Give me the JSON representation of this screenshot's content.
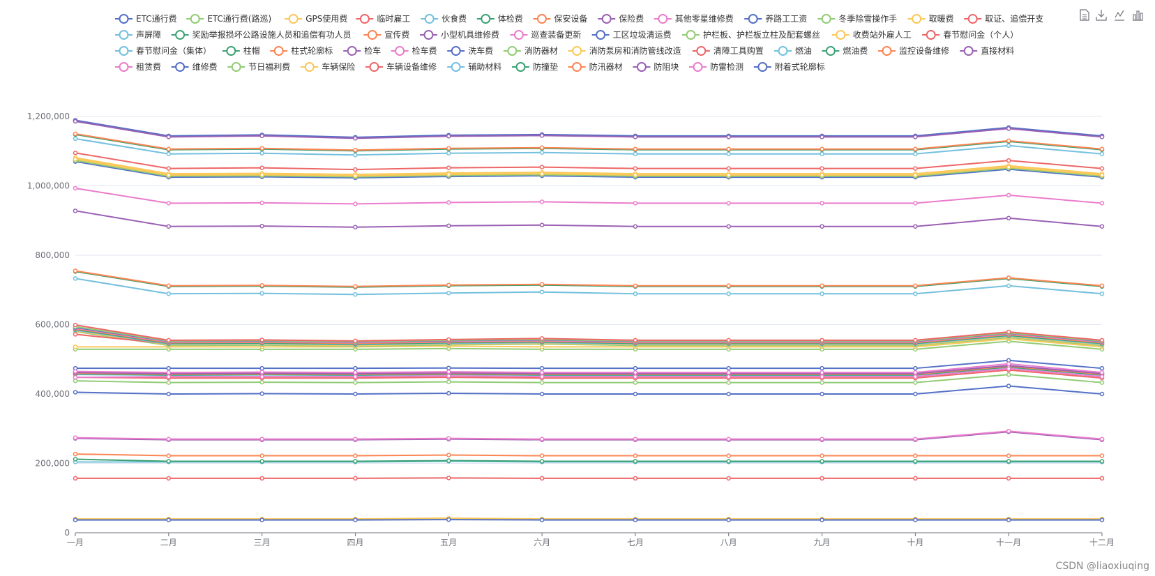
{
  "watermark": "CSDN @liaoxiuqing",
  "toolbox": [
    "data-view-icon",
    "save-image-icon",
    "line-chart-icon",
    "bar-chart-icon"
  ],
  "chart_data": {
    "type": "line",
    "title": "",
    "xlabel": "",
    "ylabel": "",
    "ylim": [
      0,
      1200000
    ],
    "yticks": [
      0,
      200000,
      400000,
      600000,
      800000,
      1000000,
      1200000
    ],
    "ytick_labels": [
      "0",
      "200,000",
      "400,000",
      "600,000",
      "800,000",
      "1,000,000",
      "1,200,000"
    ],
    "grid": true,
    "legend_position": "top",
    "categories": [
      "一月",
      "二月",
      "三月",
      "四月",
      "五月",
      "六月",
      "七月",
      "八月",
      "九月",
      "十月",
      "十一月",
      "十二月"
    ],
    "series": [
      {
        "name": "ETC通行费",
        "color": "#5470c6",
        "values": [
          405000,
          400000,
          401000,
          400000,
          402000,
          400000,
          400000,
          400000,
          400000,
          400000,
          423000,
          400000
        ]
      },
      {
        "name": "ETC通行费(路巡)",
        "color": "#91cc75",
        "values": [
          438000,
          433000,
          434000,
          433000,
          435000,
          433000,
          433000,
          433000,
          433000,
          433000,
          456000,
          433000
        ]
      },
      {
        "name": "GPS使用费",
        "color": "#fac858",
        "values": [
          40000,
          40000,
          40000,
          40000,
          42000,
          40000,
          40000,
          40000,
          40000,
          40000,
          40000,
          40000
        ]
      },
      {
        "name": "临时雇工",
        "color": "#ee6666",
        "values": [
          157000,
          157000,
          157000,
          157000,
          158000,
          157000,
          157000,
          157000,
          157000,
          157000,
          157000,
          157000
        ]
      },
      {
        "name": "伙食费",
        "color": "#73c0de",
        "values": [
          204000,
          204000,
          204000,
          204000,
          206000,
          204000,
          204000,
          204000,
          204000,
          204000,
          204000,
          204000
        ]
      },
      {
        "name": "体检费",
        "color": "#3ba272",
        "values": [
          212000,
          206000,
          206000,
          206000,
          208000,
          206000,
          206000,
          206000,
          206000,
          206000,
          206000,
          206000
        ]
      },
      {
        "name": "保安设备",
        "color": "#fc8452",
        "values": [
          227000,
          222000,
          222000,
          222000,
          224000,
          222000,
          222000,
          222000,
          222000,
          222000,
          222000,
          222000
        ]
      },
      {
        "name": "保险费",
        "color": "#9a60b4",
        "values": [
          272000,
          268000,
          268000,
          268000,
          270000,
          268000,
          268000,
          268000,
          268000,
          268000,
          291000,
          268000
        ]
      },
      {
        "name": "其他零星维修费",
        "color": "#ea7ccc",
        "values": [
          274000,
          270000,
          270000,
          270000,
          272000,
          270000,
          270000,
          270000,
          270000,
          270000,
          293000,
          270000
        ]
      },
      {
        "name": "养路工工资",
        "color": "#5470c6",
        "values": [
          474000,
          474000,
          474000,
          474000,
          475000,
          474000,
          474000,
          474000,
          474000,
          474000,
          497000,
          474000
        ]
      },
      {
        "name": "冬季除雪操作手",
        "color": "#91cc75",
        "values": [
          529000,
          529000,
          529000,
          529000,
          531000,
          529000,
          529000,
          529000,
          529000,
          529000,
          552000,
          529000
        ]
      },
      {
        "name": "取暖费",
        "color": "#fac858",
        "values": [
          536000,
          536000,
          536000,
          536000,
          538000,
          536000,
          536000,
          536000,
          536000,
          536000,
          559000,
          536000
        ]
      },
      {
        "name": "取证、追偿开支",
        "color": "#ee6666",
        "values": [
          448000,
          446000,
          446000,
          446000,
          448000,
          446000,
          446000,
          446000,
          446000,
          446000,
          469000,
          446000
        ]
      },
      {
        "name": "声屏障",
        "color": "#73c0de",
        "values": [
          456000,
          454000,
          455000,
          454000,
          456000,
          454000,
          454000,
          454000,
          454000,
          454000,
          477000,
          454000
        ]
      },
      {
        "name": "奖励举报损坏公路设施人员和追偿有功人员",
        "color": "#3ba272",
        "values": [
          458000,
          455000,
          456000,
          455000,
          457000,
          455000,
          455000,
          455000,
          455000,
          455000,
          478000,
          455000
        ]
      },
      {
        "name": "宣传费",
        "color": "#fc8452",
        "values": [
          460000,
          457000,
          458000,
          457000,
          459000,
          457000,
          457000,
          457000,
          457000,
          457000,
          480000,
          457000
        ]
      },
      {
        "name": "小型机具维修费",
        "color": "#9a60b4",
        "values": [
          462000,
          459000,
          460000,
          459000,
          461000,
          459000,
          459000,
          459000,
          459000,
          459000,
          482000,
          459000
        ]
      },
      {
        "name": "巡查装备更新",
        "color": "#ea7ccc",
        "values": [
          465000,
          462000,
          463000,
          462000,
          464000,
          462000,
          462000,
          462000,
          462000,
          462000,
          487000,
          462000
        ]
      },
      {
        "name": "工区垃圾清运费",
        "color": "#5470c6",
        "values": [
          1070000,
          1025000,
          1026000,
          1023000,
          1027000,
          1029000,
          1025000,
          1025000,
          1025000,
          1025000,
          1048000,
          1025000
        ]
      },
      {
        "name": "护栏板、护栏板立柱及配套螺丝",
        "color": "#91cc75",
        "values": [
          1073000,
          1028000,
          1029000,
          1026000,
          1030000,
          1032000,
          1028000,
          1028000,
          1028000,
          1028000,
          1051000,
          1028000
        ]
      },
      {
        "name": "收费站外雇人工",
        "color": "#fac858",
        "values": [
          1081000,
          1035000,
          1036000,
          1033000,
          1037000,
          1039000,
          1035000,
          1035000,
          1035000,
          1035000,
          1058000,
          1035000
        ]
      },
      {
        "name": "春节慰问金（个人）",
        "color": "#ee6666",
        "values": [
          1095000,
          1050000,
          1052000,
          1047000,
          1052000,
          1054000,
          1050000,
          1050000,
          1050000,
          1050000,
          1073000,
          1050000
        ]
      },
      {
        "name": "春节慰问金（集体）",
        "color": "#73c0de",
        "values": [
          1136000,
          1092000,
          1094000,
          1089000,
          1094000,
          1096000,
          1092000,
          1092000,
          1092000,
          1092000,
          1116000,
          1092000
        ]
      },
      {
        "name": "柱帽",
        "color": "#3ba272",
        "values": [
          1148000,
          1104000,
          1106000,
          1101000,
          1106000,
          1108000,
          1104000,
          1104000,
          1104000,
          1104000,
          1128000,
          1104000
        ]
      },
      {
        "name": "柱式轮廓标",
        "color": "#fc8452",
        "values": [
          1150000,
          1106000,
          1108000,
          1103000,
          1108000,
          1110000,
          1106000,
          1106000,
          1106000,
          1106000,
          1130000,
          1106000
        ]
      },
      {
        "name": "检车",
        "color": "#9a60b4",
        "values": [
          1187000,
          1142000,
          1145000,
          1138000,
          1144000,
          1146000,
          1142000,
          1142000,
          1142000,
          1142000,
          1166000,
          1142000
        ]
      },
      {
        "name": "检车费",
        "color": "#ea7ccc",
        "values": [
          993000,
          950000,
          951000,
          948000,
          952000,
          954000,
          950000,
          950000,
          950000,
          950000,
          973000,
          950000
        ]
      },
      {
        "name": "洗车费",
        "color": "#5470c6",
        "values": [
          1189000,
          1144000,
          1147000,
          1140000,
          1146000,
          1148000,
          1144000,
          1144000,
          1144000,
          1144000,
          1168000,
          1144000
        ]
      },
      {
        "name": "消防器材",
        "color": "#91cc75",
        "values": [
          580000,
          540000,
          541000,
          538000,
          542000,
          544000,
          540000,
          540000,
          540000,
          540000,
          563000,
          540000
        ]
      },
      {
        "name": "消防泵房和消防管线改造",
        "color": "#fac858",
        "values": [
          582000,
          542000,
          543000,
          540000,
          544000,
          546000,
          542000,
          542000,
          542000,
          542000,
          565000,
          542000
        ]
      },
      {
        "name": "清障工具购置",
        "color": "#ee6666",
        "values": [
          572000,
          545000,
          546000,
          543000,
          547000,
          549000,
          545000,
          545000,
          545000,
          545000,
          568000,
          545000
        ]
      },
      {
        "name": "燃油",
        "color": "#73c0de",
        "values": [
          584000,
          544000,
          545000,
          542000,
          546000,
          548000,
          544000,
          544000,
          544000,
          544000,
          567000,
          544000
        ]
      },
      {
        "name": "燃油费",
        "color": "#3ba272",
        "values": [
          586000,
          546000,
          547000,
          544000,
          548000,
          550000,
          546000,
          546000,
          546000,
          546000,
          569000,
          546000
        ]
      },
      {
        "name": "监控设备维修",
        "color": "#fc8452",
        "values": [
          588000,
          548000,
          549000,
          546000,
          550000,
          552000,
          548000,
          548000,
          548000,
          548000,
          571000,
          548000
        ]
      },
      {
        "name": "直接材料",
        "color": "#9a60b4",
        "values": [
          928000,
          883000,
          884000,
          881000,
          885000,
          887000,
          883000,
          883000,
          883000,
          883000,
          907000,
          883000
        ]
      },
      {
        "name": "租赁费",
        "color": "#ea7ccc",
        "values": [
          590000,
          550000,
          551000,
          548000,
          552000,
          554000,
          550000,
          550000,
          550000,
          550000,
          573000,
          550000
        ]
      },
      {
        "name": "维修费",
        "color": "#5470c6",
        "values": [
          592000,
          552000,
          553000,
          550000,
          554000,
          556000,
          552000,
          552000,
          552000,
          552000,
          575000,
          552000
        ]
      },
      {
        "name": "节日福利费",
        "color": "#91cc75",
        "values": [
          594000,
          553000,
          554000,
          551000,
          555000,
          557000,
          553000,
          553000,
          553000,
          553000,
          576000,
          553000
        ]
      },
      {
        "name": "车辆保险",
        "color": "#fac858",
        "values": [
          1077000,
          1031000,
          1032000,
          1029000,
          1033000,
          1035000,
          1031000,
          1031000,
          1031000,
          1031000,
          1054000,
          1031000
        ]
      },
      {
        "name": "车辆设备维修",
        "color": "#ee6666",
        "values": [
          599000,
          555000,
          556000,
          553000,
          557000,
          560000,
          555000,
          555000,
          555000,
          555000,
          579000,
          555000
        ]
      },
      {
        "name": "辅助材料",
        "color": "#73c0de",
        "values": [
          733000,
          689000,
          690000,
          687000,
          691000,
          694000,
          689000,
          689000,
          689000,
          689000,
          712000,
          689000
        ]
      },
      {
        "name": "防撞垫",
        "color": "#3ba272",
        "values": [
          753000,
          710000,
          711000,
          708000,
          712000,
          714000,
          710000,
          710000,
          710000,
          710000,
          733000,
          710000
        ]
      },
      {
        "name": "防汛器材",
        "color": "#fc8452",
        "values": [
          755000,
          712000,
          713000,
          710000,
          714000,
          716000,
          712000,
          712000,
          712000,
          712000,
          735000,
          712000
        ]
      },
      {
        "name": "防阻块",
        "color": "#9a60b4",
        "values": [
          1186000,
          1141000,
          1144000,
          1137000,
          1143000,
          1145000,
          1141000,
          1141000,
          1141000,
          1141000,
          1165000,
          1141000
        ]
      },
      {
        "name": "防雷检测",
        "color": "#ea7ccc",
        "values": [
          448000,
          450000,
          450000,
          450000,
          452000,
          450000,
          450000,
          450000,
          450000,
          450000,
          473000,
          450000
        ]
      },
      {
        "name": "附着式轮廓标",
        "color": "#5470c6",
        "values": [
          37000,
          37000,
          37000,
          37000,
          38000,
          37000,
          37000,
          37000,
          37000,
          37000,
          37000,
          37000
        ]
      }
    ]
  }
}
